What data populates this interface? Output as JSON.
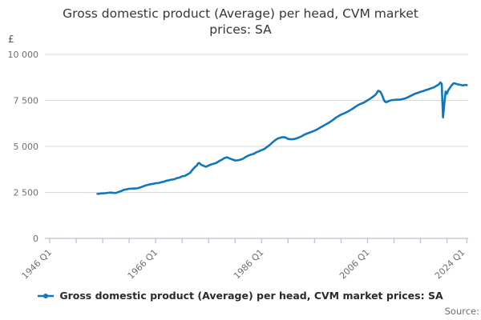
{
  "title": "Gross domestic product (Average) per head, CVM market prices: SA",
  "y_axis": {
    "unit": "£",
    "ticks": [
      {
        "label": "10 000",
        "value": 10000
      },
      {
        "label": "7 500",
        "value": 7500
      },
      {
        "label": "5 000",
        "value": 5000
      },
      {
        "label": "2 500",
        "value": 2500
      },
      {
        "label": "0",
        "value": 0
      }
    ]
  },
  "x_axis": {
    "labels": [
      {
        "label": "1946 Q1",
        "year": 1946
      },
      {
        "label": "1966 Q1",
        "year": 1966
      },
      {
        "label": "1986 Q1",
        "year": 1986
      },
      {
        "label": "2006 Q1",
        "year": 2006
      },
      {
        "label": "2024 Q1",
        "year": 2024
      }
    ],
    "minor_tick_years": [
      1946,
      1951,
      1956,
      1961,
      1966,
      1971,
      1976,
      1981,
      1986,
      1991,
      1996,
      2001,
      2006,
      2011,
      2016,
      2021,
      2024.75
    ]
  },
  "legend": {
    "label": "Gross domestic product (Average) per head, CVM market prices: SA"
  },
  "source_label": "Source:",
  "colors": {
    "line": "#1077bd",
    "grid": "#d9d9d9",
    "axis": "#b8c4dc",
    "axis_text": "#6f6f6f",
    "title_text": "#363636",
    "legend_text": "#2b2b2b",
    "source_text": "#6e6e6e"
  },
  "chart_data": {
    "type": "line",
    "title": "Gross domestic product (Average) per head, CVM market prices: SA",
    "xlabel": "",
    "ylabel": "£",
    "ylim": [
      0,
      10000
    ],
    "xlim": [
      1946,
      2025
    ],
    "grid": "horizontal",
    "legend_position": "bottom",
    "x_tick_labels": [
      "1946 Q1",
      "1966 Q1",
      "1986 Q1",
      "2006 Q1",
      "2024 Q1"
    ],
    "series": [
      {
        "name": "Gross domestic product (Average) per head, CVM market prices: SA",
        "color": "#1077bd",
        "points": [
          [
            1955.0,
            2420
          ],
          [
            1955.25,
            2425
          ],
          [
            1955.5,
            2435
          ],
          [
            1955.75,
            2445
          ],
          [
            1956.0,
            2450
          ],
          [
            1956.5,
            2455
          ],
          [
            1957.0,
            2480
          ],
          [
            1957.5,
            2490
          ],
          [
            1958.0,
            2475
          ],
          [
            1958.5,
            2470
          ],
          [
            1959.0,
            2520
          ],
          [
            1959.5,
            2575
          ],
          [
            1960.0,
            2640
          ],
          [
            1960.5,
            2665
          ],
          [
            1961.0,
            2700
          ],
          [
            1961.5,
            2705
          ],
          [
            1962.0,
            2715
          ],
          [
            1962.5,
            2720
          ],
          [
            1963.0,
            2760
          ],
          [
            1963.5,
            2810
          ],
          [
            1964.0,
            2870
          ],
          [
            1964.5,
            2910
          ],
          [
            1965.0,
            2945
          ],
          [
            1965.5,
            2965
          ],
          [
            1966.0,
            3000
          ],
          [
            1966.5,
            3010
          ],
          [
            1967.0,
            3050
          ],
          [
            1967.5,
            3080
          ],
          [
            1968.0,
            3130
          ],
          [
            1968.5,
            3160
          ],
          [
            1969.0,
            3195
          ],
          [
            1969.5,
            3215
          ],
          [
            1970.0,
            3275
          ],
          [
            1970.5,
            3305
          ],
          [
            1971.0,
            3375
          ],
          [
            1971.5,
            3395
          ],
          [
            1972.0,
            3480
          ],
          [
            1972.5,
            3560
          ],
          [
            1973.0,
            3750
          ],
          [
            1973.25,
            3820
          ],
          [
            1973.5,
            3900
          ],
          [
            1973.75,
            3950
          ],
          [
            1974.0,
            4080
          ],
          [
            1974.25,
            4100
          ],
          [
            1974.5,
            4020
          ],
          [
            1974.75,
            3980
          ],
          [
            1975.0,
            3950
          ],
          [
            1975.5,
            3895
          ],
          [
            1976.0,
            3960
          ],
          [
            1976.5,
            4020
          ],
          [
            1977.0,
            4060
          ],
          [
            1977.5,
            4110
          ],
          [
            1978.0,
            4200
          ],
          [
            1978.5,
            4280
          ],
          [
            1979.0,
            4370
          ],
          [
            1979.5,
            4405
          ],
          [
            1980.0,
            4340
          ],
          [
            1980.5,
            4285
          ],
          [
            1981.0,
            4235
          ],
          [
            1981.5,
            4245
          ],
          [
            1982.0,
            4280
          ],
          [
            1982.5,
            4330
          ],
          [
            1983.0,
            4425
          ],
          [
            1983.5,
            4500
          ],
          [
            1984.0,
            4555
          ],
          [
            1984.5,
            4590
          ],
          [
            1985.0,
            4680
          ],
          [
            1985.5,
            4735
          ],
          [
            1986.0,
            4795
          ],
          [
            1986.5,
            4855
          ],
          [
            1987.0,
            4965
          ],
          [
            1987.5,
            5070
          ],
          [
            1988.0,
            5200
          ],
          [
            1988.5,
            5320
          ],
          [
            1989.0,
            5420
          ],
          [
            1989.5,
            5470
          ],
          [
            1990.0,
            5505
          ],
          [
            1990.5,
            5485
          ],
          [
            1991.0,
            5405
          ],
          [
            1991.5,
            5385
          ],
          [
            1992.0,
            5390
          ],
          [
            1992.5,
            5425
          ],
          [
            1993.0,
            5480
          ],
          [
            1993.5,
            5545
          ],
          [
            1994.0,
            5625
          ],
          [
            1994.5,
            5690
          ],
          [
            1995.0,
            5745
          ],
          [
            1995.5,
            5795
          ],
          [
            1996.0,
            5855
          ],
          [
            1996.5,
            5925
          ],
          [
            1997.0,
            6015
          ],
          [
            1997.5,
            6090
          ],
          [
            1998.0,
            6175
          ],
          [
            1998.5,
            6255
          ],
          [
            1999.0,
            6345
          ],
          [
            1999.5,
            6445
          ],
          [
            2000.0,
            6555
          ],
          [
            2000.5,
            6645
          ],
          [
            2001.0,
            6725
          ],
          [
            2001.5,
            6785
          ],
          [
            2002.0,
            6850
          ],
          [
            2002.5,
            6925
          ],
          [
            2003.0,
            7015
          ],
          [
            2003.5,
            7110
          ],
          [
            2004.0,
            7205
          ],
          [
            2004.5,
            7285
          ],
          [
            2005.0,
            7345
          ],
          [
            2005.5,
            7415
          ],
          [
            2006.0,
            7505
          ],
          [
            2006.5,
            7595
          ],
          [
            2007.0,
            7695
          ],
          [
            2007.5,
            7805
          ],
          [
            2007.75,
            7905
          ],
          [
            2008.0,
            8020
          ],
          [
            2008.25,
            8000
          ],
          [
            2008.5,
            7930
          ],
          [
            2008.75,
            7790
          ],
          [
            2009.0,
            7590
          ],
          [
            2009.25,
            7445
          ],
          [
            2009.5,
            7405
          ],
          [
            2009.75,
            7425
          ],
          [
            2010.0,
            7465
          ],
          [
            2010.5,
            7515
          ],
          [
            2011.0,
            7525
          ],
          [
            2011.5,
            7545
          ],
          [
            2012.0,
            7535
          ],
          [
            2012.5,
            7565
          ],
          [
            2013.0,
            7595
          ],
          [
            2013.5,
            7655
          ],
          [
            2014.0,
            7725
          ],
          [
            2014.5,
            7795
          ],
          [
            2015.0,
            7865
          ],
          [
            2015.5,
            7915
          ],
          [
            2016.0,
            7965
          ],
          [
            2016.5,
            8005
          ],
          [
            2017.0,
            8060
          ],
          [
            2017.5,
            8105
          ],
          [
            2018.0,
            8155
          ],
          [
            2018.5,
            8205
          ],
          [
            2019.0,
            8285
          ],
          [
            2019.5,
            8380
          ],
          [
            2019.75,
            8480
          ],
          [
            2020.0,
            8395
          ],
          [
            2020.25,
            6580
          ],
          [
            2020.5,
            7330
          ],
          [
            2020.75,
            7980
          ],
          [
            2021.0,
            7870
          ],
          [
            2021.25,
            8060
          ],
          [
            2021.5,
            8160
          ],
          [
            2021.75,
            8260
          ],
          [
            2022.0,
            8360
          ],
          [
            2022.25,
            8430
          ],
          [
            2022.5,
            8420
          ],
          [
            2022.75,
            8395
          ],
          [
            2023.0,
            8375
          ],
          [
            2023.25,
            8360
          ],
          [
            2023.5,
            8350
          ],
          [
            2023.75,
            8330
          ],
          [
            2024.0,
            8310
          ],
          [
            2024.25,
            8330
          ],
          [
            2024.5,
            8345
          ],
          [
            2024.75,
            8330
          ]
        ]
      }
    ]
  }
}
